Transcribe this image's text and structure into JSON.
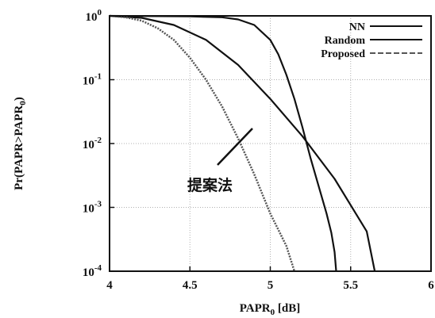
{
  "chart_data": {
    "type": "line",
    "title": "",
    "xlabel": "PAPR0 [dB]",
    "ylabel": "Pr(PAPR>PAPR0)",
    "xlim": [
      4,
      6
    ],
    "ylim": [
      0.0001,
      1
    ],
    "yscale": "log",
    "grid": true,
    "legend_position": "top-right",
    "x_ticks": [
      "4",
      "4.5",
      "5",
      "5.5",
      "6"
    ],
    "y_ticks": [
      {
        "value": 1,
        "mantissa": "10",
        "exp": "0"
      },
      {
        "value": 0.1,
        "mantissa": "10",
        "exp": "-1"
      },
      {
        "value": 0.01,
        "mantissa": "10",
        "exp": "-2"
      },
      {
        "value": 0.001,
        "mantissa": "10",
        "exp": "-3"
      },
      {
        "value": 0.0001,
        "mantissa": "10",
        "exp": "-4"
      }
    ],
    "series": [
      {
        "name": "NN",
        "style": "solid",
        "color": "#111111",
        "points": [
          [
            4.0,
            1.0
          ],
          [
            4.5,
            0.98
          ],
          [
            4.7,
            0.95
          ],
          [
            4.8,
            0.88
          ],
          [
            4.9,
            0.72
          ],
          [
            5.0,
            0.42
          ],
          [
            5.05,
            0.25
          ],
          [
            5.1,
            0.12
          ],
          [
            5.15,
            0.05
          ],
          [
            5.2,
            0.018
          ],
          [
            5.25,
            0.006
          ],
          [
            5.3,
            0.0022
          ],
          [
            5.35,
            0.0008
          ],
          [
            5.38,
            0.0004
          ],
          [
            5.4,
            0.0002
          ],
          [
            5.41,
            0.0001
          ]
        ]
      },
      {
        "name": "Random",
        "style": "solid",
        "color": "#111111",
        "points": [
          [
            4.0,
            1.0
          ],
          [
            4.2,
            0.93
          ],
          [
            4.4,
            0.72
          ],
          [
            4.6,
            0.42
          ],
          [
            4.8,
            0.17
          ],
          [
            5.0,
            0.05
          ],
          [
            5.2,
            0.013
          ],
          [
            5.4,
            0.0028
          ],
          [
            5.6,
            0.00042
          ],
          [
            5.65,
            0.0001
          ]
        ]
      },
      {
        "name": "Proposed",
        "style": "dashed",
        "color": "#555555",
        "points": [
          [
            4.0,
            1.0
          ],
          [
            4.1,
            0.95
          ],
          [
            4.2,
            0.84
          ],
          [
            4.3,
            0.64
          ],
          [
            4.4,
            0.42
          ],
          [
            4.5,
            0.22
          ],
          [
            4.6,
            0.1
          ],
          [
            4.7,
            0.038
          ],
          [
            4.8,
            0.012
          ],
          [
            4.9,
            0.0033
          ],
          [
            5.0,
            0.0008
          ],
          [
            5.1,
            0.00025
          ],
          [
            5.15,
            0.0001
          ]
        ]
      }
    ],
    "annotations": [
      {
        "text": "提案法",
        "points_to": "Proposed"
      }
    ]
  }
}
